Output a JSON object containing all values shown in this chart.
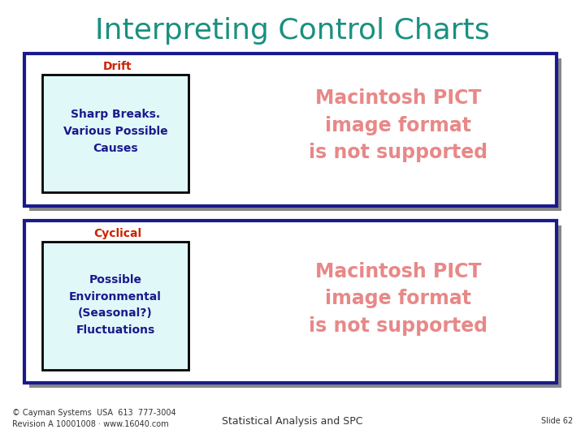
{
  "title": "Interpreting Control Charts",
  "title_color": "#1a9080",
  "title_fontsize": 26,
  "bg_color": "#ffffff",
  "panel_bg": "#ffffff",
  "box1_label": "Drift",
  "box1_label_color": "#cc2200",
  "box1_inner_text": "Sharp Breaks.\nVarious Possible\nCauses",
  "box1_inner_color": "#1a1a8c",
  "box2_label": "Cyclical",
  "box2_label_color": "#cc2200",
  "box2_inner_text": "Possible\nEnvironmental\n(Seasonal?)\nFluctuations",
  "box2_inner_color": "#1a1a8c",
  "pict_text": "Macintosh PICT\nimage format\nis not supported",
  "pict_color": "#e88888",
  "outer_border_color": "#1a1a8c",
  "inner_box_border_color": "#000000",
  "inner_box_fill": "#e0f8f8",
  "shadow_color": "#888888",
  "footer_left": "© Cayman Systems  USA  613  777-3004\nRevision A 10001008 · www.16040.com",
  "footer_center": "Statistical Analysis and SPC",
  "footer_right": "Slide 62",
  "footer_color": "#333333",
  "footer_fontsize": 7.0
}
